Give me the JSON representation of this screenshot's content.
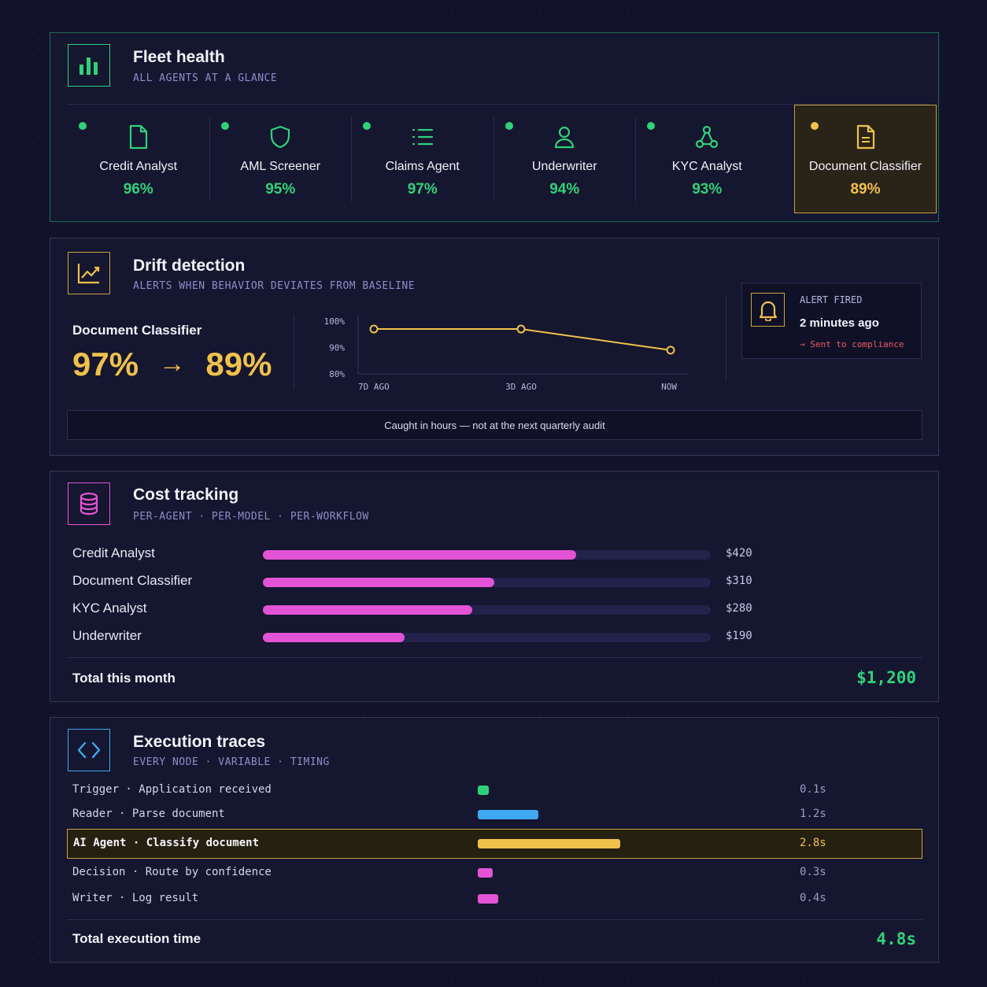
{
  "colors": {
    "green": "#2fd27a",
    "yellow": "#f0c14b",
    "magenta": "#e353d6",
    "blue": "#3ea8f0",
    "red": "#f0596b"
  },
  "fleet": {
    "title": "Fleet health",
    "subtitle": "ALL AGENTS AT A GLANCE",
    "agents": [
      {
        "name": "Credit Analyst",
        "pct": "96%",
        "icon": "document-icon",
        "status": "green"
      },
      {
        "name": "AML Screener",
        "pct": "95%",
        "icon": "shield-icon",
        "status": "green"
      },
      {
        "name": "Claims Agent",
        "pct": "97%",
        "icon": "list-icon",
        "status": "green"
      },
      {
        "name": "Underwriter",
        "pct": "94%",
        "icon": "user-icon",
        "status": "green"
      },
      {
        "name": "KYC Analyst",
        "pct": "93%",
        "icon": "network-icon",
        "status": "green"
      },
      {
        "name": "Document Classifier",
        "pct": "89%",
        "icon": "document-icon",
        "status": "yellow"
      }
    ]
  },
  "drift": {
    "title": "Drift detection",
    "subtitle": "ALERTS WHEN BEHAVIOR DEVIATES FROM BASELINE",
    "agent": "Document Classifier",
    "from": "97%",
    "arrow": "→",
    "to": "89%",
    "alert": {
      "label": "ALERT FIRED",
      "time": "2 minutes ago",
      "action": "→ Sent to compliance"
    },
    "note": "Caught in hours — not at the next quarterly audit"
  },
  "chart_data": {
    "type": "line",
    "categories": [
      "7D AGO",
      "3D AGO",
      "NOW"
    ],
    "series": [
      {
        "values": [
          97,
          97,
          89
        ]
      }
    ],
    "y_ticks": [
      "100%",
      "90%",
      "80%"
    ],
    "ylim": [
      80,
      100
    ]
  },
  "cost": {
    "title": "Cost tracking",
    "subtitle": "PER-AGENT · PER-MODEL · PER-WORKFLOW",
    "max": 600,
    "rows": [
      {
        "label": "Credit Analyst",
        "amount": 420,
        "value": "$420"
      },
      {
        "label": "Document Classifier",
        "amount": 310,
        "value": "$310"
      },
      {
        "label": "KYC Analyst",
        "amount": 280,
        "value": "$280"
      },
      {
        "label": "Underwriter",
        "amount": 190,
        "value": "$190"
      }
    ],
    "total_label": "Total this month",
    "total": "$1,200"
  },
  "traces": {
    "title": "Execution traces",
    "subtitle": "EVERY NODE · VARIABLE · TIMING",
    "rows": [
      {
        "label": "Trigger · Application received",
        "seconds": 0.1,
        "time": "0.1s",
        "color": "#2fd27a"
      },
      {
        "label": "Reader · Parse document",
        "seconds": 1.2,
        "time": "1.2s",
        "color": "#3ea8f0"
      },
      {
        "label": "AI Agent · Classify document",
        "seconds": 2.8,
        "time": "2.8s",
        "color": "#f0c14b",
        "highlight": true
      },
      {
        "label": "Decision · Route by confidence",
        "seconds": 0.3,
        "time": "0.3s",
        "color": "#e353d6"
      },
      {
        "label": "Writer · Log result",
        "seconds": 0.4,
        "time": "0.4s",
        "color": "#e353d6"
      }
    ],
    "total_label": "Total execution time",
    "total": "4.8s"
  }
}
